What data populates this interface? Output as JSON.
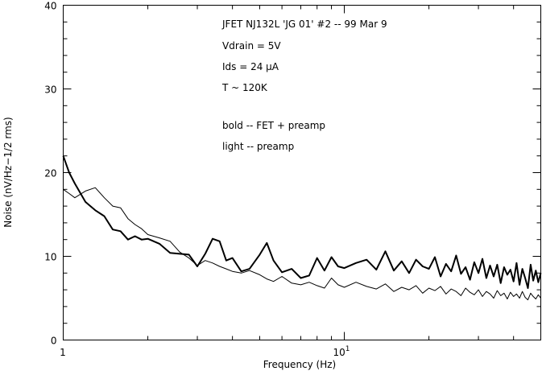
{
  "chart_data": {
    "type": "line",
    "title": "",
    "xlabel": "Frequency (Hz)",
    "ylabel": "Noise (nV/Hz−1/2 rms)",
    "xscale": "log",
    "xlim": [
      1,
      50
    ],
    "ylim": [
      0,
      40
    ],
    "x_tick_labels": [
      {
        "value": 1,
        "label": "1"
      },
      {
        "value": 10,
        "label": "10",
        "sup": "1"
      }
    ],
    "y_ticks": [
      0,
      10,
      20,
      30,
      40
    ],
    "y_tick_labels": [
      "0",
      "10",
      "20",
      "30",
      "40"
    ],
    "grid": false,
    "annotations": [
      "JFET NJ132L 'JG 01' #2 -- 99 Mar 9",
      "Vdrain = 5V",
      "Ids = 24 μA",
      "T ~ 120K",
      "bold -- FET + preamp",
      "light -- preamp"
    ],
    "x": [
      1,
      1.05,
      1.1,
      1.2,
      1.3,
      1.4,
      1.5,
      1.6,
      1.7,
      1.8,
      1.9,
      2,
      2.2,
      2.4,
      2.6,
      2.8,
      3,
      3.2,
      3.4,
      3.6,
      3.8,
      4,
      4.3,
      4.6,
      5,
      5.3,
      5.6,
      6,
      6.5,
      7,
      7.5,
      8,
      8.5,
      9,
      9.5,
      10,
      11,
      12,
      13,
      14,
      15,
      16,
      17,
      18,
      19,
      20,
      21,
      22,
      23,
      24,
      25,
      26,
      27,
      28,
      29,
      30,
      31,
      32,
      33,
      34,
      35,
      36,
      37,
      38,
      39,
      40,
      41,
      42,
      43,
      44,
      45,
      46,
      47,
      48,
      49,
      50
    ],
    "series": [
      {
        "style": "bold",
        "color": "#000000",
        "values": [
          22,
          20,
          18.7,
          16.5,
          15.5,
          14.8,
          13.2,
          13,
          12,
          12.4,
          12,
          12.1,
          11.5,
          10.4,
          10.3,
          10.2,
          8.8,
          10.3,
          12.1,
          11.8,
          9.5,
          9.8,
          8.2,
          8.5,
          10.2,
          11.6,
          9.5,
          8.1,
          8.5,
          7.4,
          7.7,
          9.8,
          8.3,
          9.9,
          8.8,
          8.6,
          9.2,
          9.6,
          8.4,
          10.6,
          8.3,
          9.4,
          8.0,
          9.6,
          8.8,
          8.5,
          9.9,
          7.6,
          9.1,
          8.2,
          10.1,
          7.9,
          8.7,
          7.2,
          9.3,
          8.0,
          9.7,
          7.4,
          8.9,
          7.6,
          9.0,
          6.8,
          8.7,
          7.8,
          8.4,
          7.0,
          9.2,
          6.6,
          8.5,
          7.4,
          6.2,
          9.0,
          7.1,
          8.3,
          6.9,
          8.0
        ]
      },
      {
        "style": "light",
        "color": "#000000",
        "values": [
          18,
          17.5,
          17,
          17.8,
          18.2,
          17,
          16,
          15.8,
          14.5,
          13.8,
          13.3,
          12.6,
          12.2,
          11.8,
          10.5,
          9.8,
          8.9,
          9.5,
          9.2,
          8.8,
          8.5,
          8.2,
          8.0,
          8.3,
          7.8,
          7.3,
          7.0,
          7.6,
          6.8,
          6.6,
          6.9,
          6.5,
          6.2,
          7.4,
          6.6,
          6.3,
          6.9,
          6.4,
          6.1,
          6.7,
          5.8,
          6.3,
          6.0,
          6.5,
          5.6,
          6.2,
          5.9,
          6.4,
          5.5,
          6.1,
          5.8,
          5.3,
          6.2,
          5.7,
          5.4,
          6.0,
          5.2,
          5.8,
          5.5,
          5.0,
          5.9,
          5.3,
          5.6,
          4.9,
          5.7,
          5.2,
          5.5,
          5.0,
          5.8,
          5.1,
          4.8,
          5.6,
          5.2,
          4.9,
          5.4,
          5.0
        ]
      }
    ]
  }
}
